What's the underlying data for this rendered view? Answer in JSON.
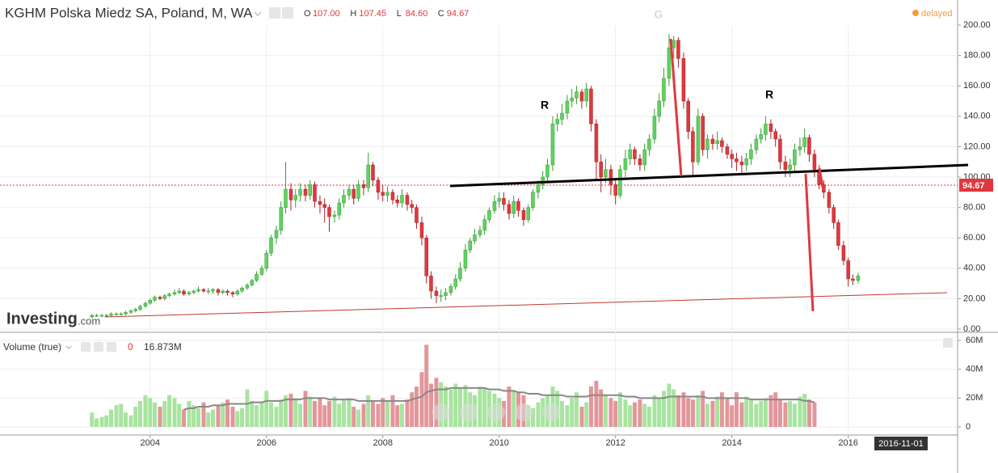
{
  "header": {
    "title": "KGHM Polska Miedz SA, Poland, M, WA",
    "ohlc": [
      [
        "O",
        "107.00"
      ],
      [
        "H",
        "107.45"
      ],
      [
        "L",
        "84.60"
      ],
      [
        "C",
        "94.67"
      ]
    ],
    "status": "delayed"
  },
  "logo": [
    "Investing",
    ".com"
  ],
  "volume_header": {
    "title": "Volume (true)",
    "value1": "0",
    "value2": "16.873M"
  },
  "cursor_date": "2016-11-01",
  "annotations": [
    "R",
    "G",
    "R"
  ],
  "chart_data": {
    "type": "candlestick",
    "x": [
      2003.0,
      2003.08,
      2003.17,
      2003.25,
      2003.33,
      2003.42,
      2003.5,
      2003.58,
      2003.67,
      2003.75,
      2003.83,
      2003.92,
      2004.0,
      2004.08,
      2004.17,
      2004.25,
      2004.33,
      2004.42,
      2004.5,
      2004.58,
      2004.67,
      2004.75,
      2004.83,
      2004.92,
      2005.0,
      2005.08,
      2005.17,
      2005.25,
      2005.33,
      2005.42,
      2005.5,
      2005.58,
      2005.67,
      2005.75,
      2005.83,
      2005.92,
      2006.0,
      2006.08,
      2006.17,
      2006.25,
      2006.33,
      2006.42,
      2006.5,
      2006.58,
      2006.67,
      2006.75,
      2006.83,
      2006.92,
      2007.0,
      2007.08,
      2007.17,
      2007.25,
      2007.33,
      2007.42,
      2007.5,
      2007.58,
      2007.67,
      2007.75,
      2007.83,
      2007.92,
      2008.0,
      2008.08,
      2008.17,
      2008.25,
      2008.33,
      2008.42,
      2008.5,
      2008.58,
      2008.67,
      2008.75,
      2008.83,
      2008.92,
      2009.0,
      2009.08,
      2009.17,
      2009.25,
      2009.33,
      2009.42,
      2009.5,
      2009.58,
      2009.67,
      2009.75,
      2009.83,
      2009.92,
      2010.0,
      2010.08,
      2010.17,
      2010.25,
      2010.33,
      2010.42,
      2010.5,
      2010.58,
      2010.67,
      2010.75,
      2010.83,
      2010.92,
      2011.0,
      2011.08,
      2011.17,
      2011.25,
      2011.33,
      2011.42,
      2011.5,
      2011.58,
      2011.67,
      2011.75,
      2011.83,
      2011.92,
      2012.0,
      2012.08,
      2012.17,
      2012.25,
      2012.33,
      2012.42,
      2012.5,
      2012.58,
      2012.67,
      2012.75,
      2012.83,
      2012.92,
      2013.0,
      2013.08,
      2013.17,
      2013.25,
      2013.33,
      2013.42,
      2013.5,
      2013.58,
      2013.67,
      2013.75,
      2013.83,
      2013.92,
      2014.0,
      2014.08,
      2014.17,
      2014.25,
      2014.33,
      2014.42,
      2014.5,
      2014.58,
      2014.67,
      2014.75,
      2014.83,
      2014.92,
      2015.0,
      2015.08,
      2015.17,
      2015.25,
      2015.33,
      2015.42,
      2015.5,
      2015.58,
      2015.67,
      2015.75,
      2015.83,
      2015.92,
      2016.0,
      2016.08,
      2016.17
    ],
    "open": [
      8,
      9,
      9,
      9,
      9,
      10,
      10,
      10,
      11,
      12,
      13,
      15,
      17,
      19,
      21,
      20,
      22,
      23,
      24,
      25,
      23,
      24,
      25,
      26,
      25,
      25,
      26,
      24,
      25,
      24,
      23,
      25,
      27,
      29,
      32,
      36,
      40,
      50,
      60,
      65,
      80,
      92,
      85,
      88,
      92,
      88,
      95,
      84,
      82,
      80,
      74,
      75,
      83,
      88,
      92,
      86,
      95,
      93,
      108,
      98,
      90,
      88,
      90,
      85,
      83,
      88,
      82,
      80,
      70,
      60,
      35,
      25,
      22,
      22,
      24,
      28,
      33,
      40,
      52,
      58,
      62,
      65,
      72,
      78,
      84,
      86,
      82,
      76,
      84,
      78,
      72,
      80,
      90,
      95,
      100,
      108,
      135,
      138,
      142,
      150,
      152,
      156,
      150,
      158,
      135,
      110,
      100,
      105,
      95,
      88,
      105,
      112,
      118,
      112,
      108,
      118,
      125,
      140,
      150,
      165,
      185,
      190,
      178,
      150,
      130,
      110,
      140,
      118,
      125,
      122,
      124,
      120,
      115,
      112,
      110,
      108,
      112,
      118,
      125,
      128,
      135,
      130,
      125,
      110,
      105,
      108,
      118,
      120,
      126,
      115,
      105,
      95,
      90,
      80,
      70,
      55,
      45,
      33,
      32
    ],
    "high": [
      10,
      10,
      10,
      10,
      11,
      11,
      11,
      12,
      13,
      14,
      16,
      18,
      20,
      22,
      22,
      23,
      24,
      26,
      27,
      26,
      25,
      26,
      28,
      27,
      27,
      27,
      27,
      26,
      26,
      25,
      26,
      28,
      30,
      33,
      38,
      42,
      52,
      62,
      68,
      84,
      110,
      96,
      92,
      96,
      95,
      98,
      97,
      88,
      86,
      82,
      78,
      86,
      92,
      95,
      95,
      98,
      98,
      116,
      110,
      100,
      95,
      94,
      92,
      88,
      92,
      90,
      85,
      82,
      74,
      62,
      38,
      28,
      26,
      27,
      30,
      36,
      44,
      56,
      60,
      66,
      68,
      75,
      80,
      88,
      90,
      90,
      85,
      88,
      86,
      80,
      82,
      92,
      98,
      104,
      112,
      140,
      142,
      148,
      154,
      158,
      160,
      158,
      162,
      160,
      138,
      115,
      112,
      108,
      98,
      108,
      118,
      122,
      120,
      115,
      122,
      128,
      145,
      155,
      172,
      194,
      193,
      192,
      182,
      152,
      133,
      145,
      142,
      128,
      128,
      130,
      126,
      122,
      118,
      116,
      114,
      116,
      122,
      128,
      132,
      140,
      138,
      132,
      128,
      114,
      112,
      122,
      126,
      132,
      128,
      118,
      108,
      98,
      92,
      82,
      72,
      58,
      47,
      36,
      37
    ],
    "low": [
      7,
      8,
      8,
      8,
      8,
      9,
      9,
      9,
      10,
      11,
      12,
      14,
      16,
      18,
      19,
      19,
      21,
      22,
      23,
      22,
      22,
      23,
      24,
      24,
      23,
      23,
      22,
      23,
      22,
      21,
      22,
      24,
      26,
      28,
      31,
      35,
      38,
      48,
      56,
      62,
      76,
      78,
      80,
      84,
      84,
      85,
      80,
      76,
      70,
      64,
      70,
      72,
      80,
      85,
      82,
      84,
      88,
      90,
      94,
      85,
      84,
      84,
      82,
      80,
      80,
      78,
      76,
      66,
      55,
      30,
      20,
      17,
      18,
      19,
      22,
      26,
      31,
      38,
      50,
      56,
      60,
      62,
      70,
      76,
      80,
      78,
      72,
      73,
      74,
      68,
      70,
      78,
      86,
      92,
      96,
      104,
      130,
      134,
      138,
      146,
      148,
      145,
      146,
      130,
      98,
      90,
      96,
      88,
      82,
      86,
      100,
      108,
      108,
      104,
      104,
      114,
      122,
      136,
      146,
      160,
      178,
      172,
      145,
      125,
      100,
      108,
      114,
      112,
      118,
      118,
      116,
      112,
      106,
      104,
      102,
      104,
      108,
      115,
      122,
      124,
      125,
      120,
      105,
      100,
      100,
      104,
      114,
      116,
      110,
      100,
      92,
      86,
      76,
      66,
      52,
      42,
      28,
      29,
      30
    ],
    "close": [
      9,
      9,
      9,
      9,
      10,
      10,
      10,
      11,
      12,
      13,
      15,
      17,
      19,
      21,
      20,
      22,
      23,
      24,
      25,
      23,
      24,
      25,
      26,
      25,
      25,
      26,
      24,
      25,
      24,
      23,
      25,
      27,
      29,
      32,
      36,
      40,
      50,
      60,
      65,
      80,
      92,
      85,
      88,
      92,
      88,
      95,
      84,
      82,
      80,
      74,
      75,
      83,
      88,
      92,
      86,
      95,
      93,
      108,
      98,
      90,
      88,
      90,
      85,
      83,
      88,
      82,
      80,
      70,
      60,
      35,
      25,
      22,
      22,
      24,
      28,
      33,
      40,
      52,
      58,
      62,
      65,
      72,
      78,
      84,
      86,
      82,
      76,
      84,
      78,
      72,
      80,
      90,
      95,
      100,
      108,
      135,
      138,
      142,
      150,
      152,
      156,
      150,
      158,
      135,
      110,
      100,
      105,
      95,
      88,
      105,
      112,
      118,
      112,
      108,
      118,
      125,
      140,
      150,
      165,
      185,
      190,
      178,
      150,
      130,
      110,
      140,
      118,
      125,
      122,
      124,
      120,
      115,
      112,
      110,
      108,
      112,
      118,
      125,
      128,
      135,
      130,
      125,
      110,
      105,
      108,
      118,
      120,
      126,
      115,
      105,
      95,
      90,
      80,
      70,
      55,
      45,
      33,
      32,
      35
    ],
    "up_color": "#5fd35f",
    "down_color": "#e0383e",
    "volume": [
      10,
      6,
      7,
      8,
      12,
      15,
      16,
      10,
      8,
      14,
      18,
      22,
      20,
      17,
      14,
      18,
      22,
      20,
      16,
      12,
      18,
      15,
      13,
      17,
      10,
      12,
      15,
      17,
      19,
      14,
      11,
      13,
      26,
      18,
      15,
      17,
      25,
      17,
      14,
      19,
      22,
      23,
      20,
      16,
      25,
      21,
      18,
      20,
      15,
      18,
      21,
      16,
      19,
      20,
      14,
      12,
      16,
      22,
      18,
      16,
      20,
      18,
      22,
      15,
      16,
      19,
      24,
      28,
      38,
      57,
      30,
      34,
      31,
      28,
      26,
      30,
      27,
      29,
      24,
      22,
      28,
      27,
      25,
      23,
      20,
      18,
      28,
      25,
      24,
      22,
      15,
      13,
      17,
      20,
      22,
      28,
      25,
      18,
      15,
      20,
      24,
      14,
      17,
      28,
      32,
      26,
      22,
      20,
      18,
      24,
      19,
      15,
      17,
      19,
      16,
      14,
      22,
      20,
      25,
      30,
      26,
      22,
      24,
      20,
      19,
      22,
      25,
      16,
      18,
      21,
      24,
      20,
      15,
      24,
      17,
      21,
      19,
      16,
      18,
      20,
      22,
      24,
      19,
      17,
      18,
      16,
      21,
      23,
      19,
      17,
      null,
      null,
      null,
      null,
      null,
      null,
      null,
      null,
      null
    ],
    "volume_ma": [
      null,
      null,
      null,
      null,
      null,
      null,
      null,
      null,
      null,
      null,
      null,
      null,
      null,
      null,
      null,
      null,
      null,
      null,
      null,
      12,
      13,
      13,
      14,
      14,
      14,
      15,
      15,
      15,
      16,
      16,
      16,
      16,
      16,
      17,
      17,
      17,
      18,
      18,
      18,
      18,
      19,
      19,
      19,
      19,
      20,
      20,
      20,
      20,
      20,
      19,
      19,
      19,
      19,
      19,
      19,
      18,
      18,
      18,
      18,
      18,
      18,
      18,
      18,
      18,
      18,
      18,
      19,
      20,
      21,
      24,
      25,
      26,
      26,
      26,
      27,
      27,
      27,
      27,
      27,
      27,
      27,
      27,
      26,
      26,
      26,
      25,
      25,
      25,
      24,
      24,
      23,
      23,
      23,
      22,
      22,
      22,
      22,
      22,
      21,
      21,
      21,
      21,
      21,
      22,
      22,
      22,
      22,
      22,
      22,
      22,
      21,
      21,
      21,
      20,
      20,
      20,
      20,
      20,
      20,
      21,
      21,
      21,
      21,
      21,
      21,
      21,
      21,
      20,
      20,
      20,
      20,
      20,
      20,
      20,
      20,
      20,
      19,
      19,
      19,
      19,
      19,
      19,
      19,
      19,
      19,
      19,
      19,
      18,
      18,
      17,
      null,
      null,
      null,
      null,
      null,
      null,
      null,
      null,
      null
    ],
    "volume_up_color": "#a8e4a0",
    "volume_down_color": "#e3969a",
    "volume_ma_color": "#888888",
    "xlim": [
      2001.42,
      2017.88
    ],
    "xticks": [
      2004,
      2006,
      2008,
      2010,
      2012,
      2014,
      2016
    ],
    "ylim": [
      0,
      200
    ],
    "yticks": [
      {
        "value": 0,
        "label": "0.00"
      },
      {
        "value": 20,
        "label": "20.00"
      },
      {
        "value": 40,
        "label": "40.00"
      },
      {
        "value": 60,
        "label": "60.00"
      },
      {
        "value": 80,
        "label": "80.00"
      },
      {
        "value": 100,
        "label": "100.00"
      },
      {
        "value": 120,
        "label": "120.00"
      },
      {
        "value": 140,
        "label": "140.00"
      },
      {
        "value": 160,
        "label": "160.00"
      },
      {
        "value": 180,
        "label": "180.00"
      },
      {
        "value": 200,
        "label": "200.00"
      }
    ],
    "y2lim": [
      0,
      60
    ],
    "y2ticks": [
      0,
      {
        "value": 20,
        "label": "20M"
      },
      {
        "value": 40,
        "label": "40M"
      },
      {
        "value": 60,
        "label": "60M"
      }
    ],
    "last_price": 94.67,
    "grid": true
  }
}
